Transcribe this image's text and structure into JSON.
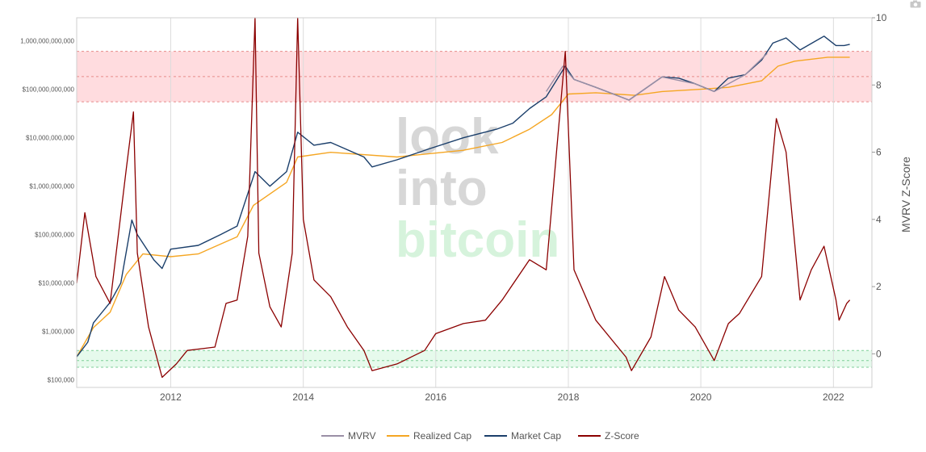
{
  "chart_data": {
    "type": "line",
    "x_range": [
      "2010-08-01",
      "2022-08-01"
    ],
    "x_ticks": [
      "2012",
      "2014",
      "2016",
      "2018",
      "2020",
      "2022"
    ],
    "left_axis": {
      "scale": "log",
      "range": [
        70000,
        3000000000000
      ],
      "ticks": [
        {
          "value": 100000,
          "label": "$100,000"
        },
        {
          "value": 1000000,
          "label": "$1,000,000"
        },
        {
          "value": 10000000,
          "label": "$10,000,000"
        },
        {
          "value": 100000000,
          "label": "$100,000,000"
        },
        {
          "value": 1000000000,
          "label": "$1,000,000,000"
        },
        {
          "value": 10000000000,
          "label": "$10,000,000,000"
        },
        {
          "value": 100000000000,
          "label": "$100,000,000,000"
        },
        {
          "value": 1000000000000,
          "label": "1,000,000,000,000"
        }
      ]
    },
    "right_axis": {
      "label": "MVRV Z-Score",
      "range": [
        -1,
        10
      ],
      "ticks": [
        0,
        2,
        4,
        6,
        8,
        10
      ]
    },
    "bands": [
      {
        "name": "top",
        "z_from": 7.5,
        "z_to": 9,
        "mid": 8.25,
        "color": "#ff9aa2"
      },
      {
        "name": "bottom",
        "z_from": -0.4,
        "z_to": 0.1,
        "mid": -0.2,
        "color": "#b6f2c8"
      }
    ],
    "watermark": [
      "look",
      "into",
      "bitcoin"
    ],
    "grid": true,
    "legend_position": "bottom-center",
    "series": [
      {
        "name": "MVRV",
        "color": "#9a8fa6",
        "axis": "left",
        "points": [
          [
            "2017-09-01",
            90000000000
          ],
          [
            "2017-12-01",
            300000000000
          ],
          [
            "2018-02-01",
            160000000000
          ],
          [
            "2018-06-01",
            110000000000
          ],
          [
            "2018-12-01",
            60000000000
          ],
          [
            "2019-06-01",
            180000000000
          ],
          [
            "2019-12-01",
            130000000000
          ],
          [
            "2020-03-15",
            90000000000
          ],
          [
            "2020-09-01",
            200000000000
          ],
          [
            "2021-01-01",
            550000000000
          ]
        ]
      },
      {
        "name": "Realized Cap",
        "color": "#f5a623",
        "axis": "left",
        "points": [
          [
            "2010-08-01",
            300000
          ],
          [
            "2010-11-01",
            1200000
          ],
          [
            "2011-02-01",
            2500000
          ],
          [
            "2011-05-01",
            15000000
          ],
          [
            "2011-08-01",
            40000000
          ],
          [
            "2012-01-01",
            35000000
          ],
          [
            "2012-06-01",
            40000000
          ],
          [
            "2013-01-01",
            90000000
          ],
          [
            "2013-04-01",
            400000000
          ],
          [
            "2013-10-01",
            1200000000
          ],
          [
            "2013-12-01",
            4000000000
          ],
          [
            "2014-06-01",
            5000000000
          ],
          [
            "2015-06-01",
            4000000000
          ],
          [
            "2016-06-01",
            5500000000
          ],
          [
            "2017-01-01",
            8000000000
          ],
          [
            "2017-06-01",
            15000000000
          ],
          [
            "2017-10-01",
            30000000000
          ],
          [
            "2018-01-01",
            80000000000
          ],
          [
            "2018-06-01",
            85000000000
          ],
          [
            "2019-01-01",
            75000000000
          ],
          [
            "2019-06-01",
            90000000000
          ],
          [
            "2020-01-01",
            100000000000
          ],
          [
            "2020-06-01",
            110000000000
          ],
          [
            "2020-12-01",
            150000000000
          ],
          [
            "2021-03-01",
            300000000000
          ],
          [
            "2021-06-01",
            380000000000
          ],
          [
            "2021-12-01",
            460000000000
          ],
          [
            "2022-04-01",
            460000000000
          ]
        ]
      },
      {
        "name": "Market Cap",
        "color": "#1b3f6b",
        "axis": "left",
        "points": [
          [
            "2010-08-01",
            300000
          ],
          [
            "2010-10-01",
            600000
          ],
          [
            "2010-11-01",
            1500000
          ],
          [
            "2011-02-01",
            4000000
          ],
          [
            "2011-04-01",
            10000000
          ],
          [
            "2011-06-01",
            200000000
          ],
          [
            "2011-07-01",
            100000000
          ],
          [
            "2011-10-01",
            30000000
          ],
          [
            "2011-11-15",
            20000000
          ],
          [
            "2012-01-01",
            50000000
          ],
          [
            "2012-06-01",
            60000000
          ],
          [
            "2012-10-01",
            100000000
          ],
          [
            "2013-01-01",
            150000000
          ],
          [
            "2013-04-10",
            2000000000
          ],
          [
            "2013-07-01",
            1000000000
          ],
          [
            "2013-10-01",
            2000000000
          ],
          [
            "2013-12-01",
            13000000000
          ],
          [
            "2014-03-01",
            7000000000
          ],
          [
            "2014-06-01",
            8000000000
          ],
          [
            "2014-12-01",
            4000000000
          ],
          [
            "2015-01-15",
            2500000000
          ],
          [
            "2015-06-01",
            3500000000
          ],
          [
            "2015-12-01",
            6000000000
          ],
          [
            "2016-06-01",
            10000000000
          ],
          [
            "2016-12-01",
            15000000000
          ],
          [
            "2017-03-01",
            20000000000
          ],
          [
            "2017-06-01",
            40000000000
          ],
          [
            "2017-09-01",
            70000000000
          ],
          [
            "2017-12-15",
            300000000000
          ],
          [
            "2018-02-01",
            160000000000
          ],
          [
            "2018-06-01",
            110000000000
          ],
          [
            "2018-12-01",
            60000000000
          ],
          [
            "2019-06-01",
            180000000000
          ],
          [
            "2019-09-01",
            170000000000
          ],
          [
            "2019-12-01",
            130000000000
          ],
          [
            "2020-03-15",
            90000000000
          ],
          [
            "2020-06-01",
            170000000000
          ],
          [
            "2020-09-01",
            200000000000
          ],
          [
            "2020-12-01",
            400000000000
          ],
          [
            "2021-02-01",
            900000000000
          ],
          [
            "2021-04-15",
            1150000000000
          ],
          [
            "2021-07-01",
            650000000000
          ],
          [
            "2021-11-10",
            1250000000000
          ],
          [
            "2022-01-15",
            800000000000
          ],
          [
            "2022-03-01",
            800000000000
          ],
          [
            "2022-04-01",
            850000000000
          ]
        ]
      },
      {
        "name": "Z-Score",
        "color": "#8b0000",
        "axis": "right",
        "points": [
          [
            "2010-08-01",
            2.1
          ],
          [
            "2010-09-15",
            4.2
          ],
          [
            "2010-11-15",
            2.3
          ],
          [
            "2011-02-01",
            1.5
          ],
          [
            "2011-05-01",
            5.5
          ],
          [
            "2011-06-10",
            7.2
          ],
          [
            "2011-07-01",
            3.0
          ],
          [
            "2011-09-01",
            0.8
          ],
          [
            "2011-11-15",
            -0.7
          ],
          [
            "2012-02-01",
            -0.3
          ],
          [
            "2012-04-01",
            0.1
          ],
          [
            "2012-09-01",
            0.2
          ],
          [
            "2012-11-01",
            1.5
          ],
          [
            "2013-01-01",
            1.6
          ],
          [
            "2013-03-01",
            3.5
          ],
          [
            "2013-04-10",
            10.0
          ],
          [
            "2013-05-01",
            3.0
          ],
          [
            "2013-07-01",
            1.4
          ],
          [
            "2013-09-01",
            0.8
          ],
          [
            "2013-11-01",
            3.0
          ],
          [
            "2013-12-01",
            10.0
          ],
          [
            "2014-01-01",
            4.0
          ],
          [
            "2014-03-01",
            2.2
          ],
          [
            "2014-06-01",
            1.7
          ],
          [
            "2014-09-01",
            0.8
          ],
          [
            "2014-12-01",
            0.1
          ],
          [
            "2015-01-15",
            -0.5
          ],
          [
            "2015-06-01",
            -0.3
          ],
          [
            "2015-11-01",
            0.1
          ],
          [
            "2016-01-01",
            0.6
          ],
          [
            "2016-06-01",
            0.9
          ],
          [
            "2016-10-01",
            1.0
          ],
          [
            "2017-01-01",
            1.6
          ],
          [
            "2017-06-01",
            2.8
          ],
          [
            "2017-09-01",
            2.5
          ],
          [
            "2017-12-15",
            9.0
          ],
          [
            "2018-02-01",
            2.5
          ],
          [
            "2018-06-01",
            1.0
          ],
          [
            "2018-11-15",
            -0.1
          ],
          [
            "2018-12-15",
            -0.5
          ],
          [
            "2019-04-01",
            0.5
          ],
          [
            "2019-06-15",
            2.3
          ],
          [
            "2019-09-01",
            1.3
          ],
          [
            "2019-12-01",
            0.8
          ],
          [
            "2020-03-15",
            -0.2
          ],
          [
            "2020-06-01",
            0.9
          ],
          [
            "2020-08-01",
            1.2
          ],
          [
            "2020-12-01",
            2.3
          ],
          [
            "2021-02-20",
            7.0
          ],
          [
            "2021-04-15",
            6.0
          ],
          [
            "2021-07-01",
            1.6
          ],
          [
            "2021-09-01",
            2.5
          ],
          [
            "2021-11-10",
            3.2
          ],
          [
            "2022-01-15",
            1.6
          ],
          [
            "2022-02-01",
            1.0
          ],
          [
            "2022-03-15",
            1.5
          ],
          [
            "2022-04-01",
            1.6
          ]
        ]
      }
    ]
  }
}
